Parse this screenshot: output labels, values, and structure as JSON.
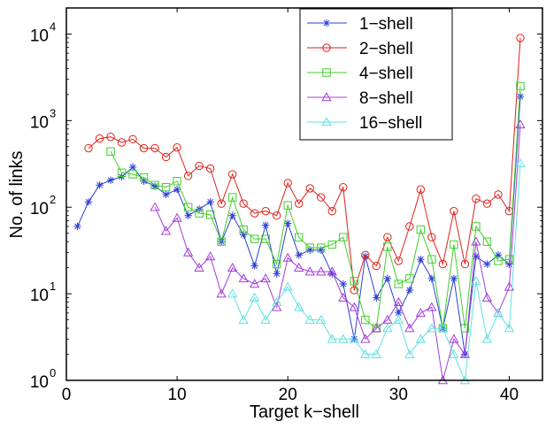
{
  "chart_data": {
    "type": "line",
    "title": "",
    "xlabel": "Target k−shell",
    "ylabel": "No. of links",
    "xlim": [
      0,
      43
    ],
    "ylim": [
      1,
      20000
    ],
    "yscale": "log",
    "x_ticks": [
      0,
      10,
      20,
      30,
      40
    ],
    "y_ticks": [
      {
        "value": 1,
        "base": "10",
        "exp": "0"
      },
      {
        "value": 10,
        "base": "10",
        "exp": "1"
      },
      {
        "value": 100,
        "base": "10",
        "exp": "2"
      },
      {
        "value": 1000,
        "base": "10",
        "exp": "3"
      },
      {
        "value": 10000,
        "base": "10",
        "exp": "4"
      }
    ],
    "grid": false,
    "legend_position": "top-right",
    "series": [
      {
        "name": "1−shell",
        "color": "#2b3fd6",
        "marker": "asterisk",
        "points": [
          [
            1,
            60
          ],
          [
            2,
            115
          ],
          [
            3,
            180
          ],
          [
            4,
            205
          ],
          [
            5,
            225
          ],
          [
            6,
            290
          ],
          [
            7,
            200
          ],
          [
            8,
            175
          ],
          [
            9,
            140
          ],
          [
            10,
            160
          ],
          [
            11,
            80
          ],
          [
            12,
            95
          ],
          [
            13,
            115
          ],
          [
            14,
            40
          ],
          [
            15,
            80
          ],
          [
            16,
            48
          ],
          [
            17,
            21
          ],
          [
            18,
            62
          ],
          [
            19,
            17
          ],
          [
            20,
            65
          ],
          [
            21,
            28
          ],
          [
            22,
            32
          ],
          [
            23,
            32
          ],
          [
            24,
            17
          ],
          [
            25,
            13
          ],
          [
            26,
            3
          ],
          [
            27,
            27
          ],
          [
            28,
            9
          ],
          [
            29,
            15
          ],
          [
            30,
            6
          ],
          [
            31,
            11
          ],
          [
            32,
            25
          ],
          [
            33,
            15
          ],
          [
            34,
            4
          ],
          [
            35,
            15
          ],
          [
            36,
            2
          ],
          [
            37,
            27
          ],
          [
            38,
            22
          ],
          [
            39,
            28
          ],
          [
            40,
            22
          ],
          [
            41,
            1900
          ]
        ]
      },
      {
        "name": "2−shell",
        "color": "#e0201b",
        "marker": "circle",
        "points": [
          [
            2,
            480
          ],
          [
            3,
            620
          ],
          [
            4,
            650
          ],
          [
            5,
            560
          ],
          [
            6,
            610
          ],
          [
            7,
            480
          ],
          [
            8,
            480
          ],
          [
            9,
            380
          ],
          [
            10,
            490
          ],
          [
            11,
            230
          ],
          [
            12,
            300
          ],
          [
            13,
            280
          ],
          [
            14,
            110
          ],
          [
            15,
            240
          ],
          [
            16,
            110
          ],
          [
            17,
            85
          ],
          [
            18,
            90
          ],
          [
            19,
            80
          ],
          [
            20,
            190
          ],
          [
            21,
            110
          ],
          [
            22,
            165
          ],
          [
            23,
            130
          ],
          [
            24,
            90
          ],
          [
            25,
            170
          ],
          [
            26,
            11
          ],
          [
            27,
            28
          ],
          [
            28,
            21
          ],
          [
            29,
            45
          ],
          [
            30,
            24
          ],
          [
            31,
            60
          ],
          [
            32,
            160
          ],
          [
            33,
            45
          ],
          [
            34,
            22
          ],
          [
            35,
            90
          ],
          [
            36,
            22
          ],
          [
            37,
            125
          ],
          [
            38,
            110
          ],
          [
            39,
            140
          ],
          [
            40,
            90
          ],
          [
            41,
            9000
          ]
        ]
      },
      {
        "name": "4−shell",
        "color": "#3fcf2a",
        "marker": "square",
        "points": [
          [
            4,
            440
          ],
          [
            5,
            250
          ],
          [
            6,
            240
          ],
          [
            7,
            220
          ],
          [
            8,
            180
          ],
          [
            9,
            170
          ],
          [
            10,
            200
          ],
          [
            11,
            100
          ],
          [
            12,
            85
          ],
          [
            13,
            82
          ],
          [
            14,
            40
          ],
          [
            15,
            130
          ],
          [
            16,
            55
          ],
          [
            17,
            43
          ],
          [
            18,
            43
          ],
          [
            19,
            22
          ],
          [
            20,
            105
          ],
          [
            21,
            45
          ],
          [
            22,
            34
          ],
          [
            23,
            34
          ],
          [
            24,
            37
          ],
          [
            25,
            45
          ],
          [
            26,
            14
          ],
          [
            27,
            5
          ],
          [
            28,
            4
          ],
          [
            29,
            35
          ],
          [
            30,
            13
          ],
          [
            31,
            15
          ],
          [
            32,
            55
          ],
          [
            33,
            25
          ],
          [
            34,
            4
          ],
          [
            35,
            37
          ],
          [
            36,
            4
          ],
          [
            37,
            60
          ],
          [
            38,
            40
          ],
          [
            39,
            24
          ],
          [
            40,
            25
          ],
          [
            41,
            2500
          ]
        ]
      },
      {
        "name": "8−shell",
        "color": "#a43cd8",
        "marker": "triangle",
        "points": [
          [
            8,
            100
          ],
          [
            9,
            53
          ],
          [
            10,
            75
          ],
          [
            11,
            30
          ],
          [
            12,
            20
          ],
          [
            13,
            27
          ],
          [
            14,
            10
          ],
          [
            15,
            20
          ],
          [
            16,
            15
          ],
          [
            17,
            13
          ],
          [
            18,
            15
          ],
          [
            19,
            7
          ],
          [
            20,
            26
          ],
          [
            21,
            20
          ],
          [
            22,
            18
          ],
          [
            23,
            18
          ],
          [
            24,
            18
          ],
          [
            25,
            9
          ],
          [
            26,
            7
          ],
          [
            27,
            3
          ],
          [
            28,
            4
          ],
          [
            29,
            5
          ],
          [
            30,
            8
          ],
          [
            31,
            4
          ],
          [
            32,
            6
          ],
          [
            33,
            7
          ],
          [
            34,
            1
          ],
          [
            35,
            3
          ],
          [
            36,
            2
          ],
          [
            37,
            40
          ],
          [
            38,
            9
          ],
          [
            39,
            6
          ],
          [
            40,
            12
          ],
          [
            41,
            900
          ]
        ]
      },
      {
        "name": "16−shell",
        "color": "#5fe0e0",
        "marker": "triangle",
        "points": [
          [
            15,
            10
          ],
          [
            16,
            5
          ],
          [
            17,
            9
          ],
          [
            18,
            5
          ],
          [
            19,
            8
          ],
          [
            20,
            12
          ],
          [
            21,
            7
          ],
          [
            22,
            5
          ],
          [
            23,
            5
          ],
          [
            24,
            3
          ],
          [
            25,
            3
          ],
          [
            26,
            3
          ],
          [
            27,
            2
          ],
          [
            28,
            2
          ],
          [
            29,
            4
          ],
          [
            30,
            5
          ],
          [
            31,
            2
          ],
          [
            32,
            3
          ],
          [
            33,
            4
          ],
          [
            34,
            4
          ],
          [
            35,
            2
          ],
          [
            36,
            1
          ],
          [
            37,
            14
          ],
          [
            38,
            3
          ],
          [
            39,
            6
          ],
          [
            40,
            4
          ],
          [
            41,
            320
          ]
        ]
      }
    ]
  }
}
